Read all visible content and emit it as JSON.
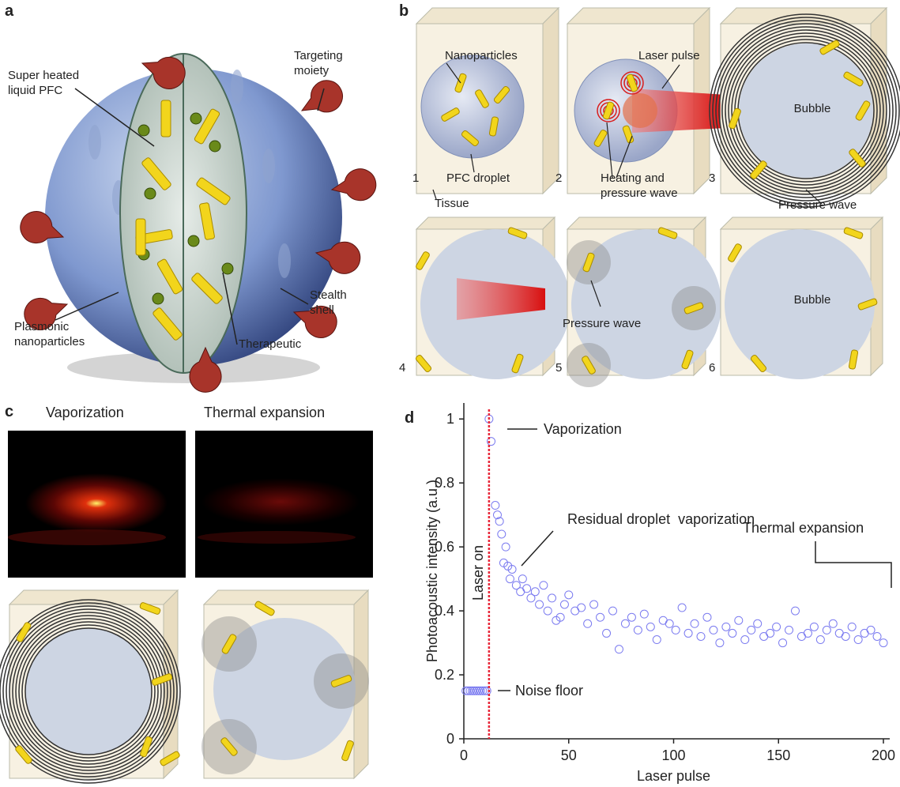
{
  "panels": {
    "a": {
      "letter": "a",
      "labels": {
        "pfc": [
          "Super heated",
          "liquid PFC"
        ],
        "targeting": [
          "Targeting",
          "moiety"
        ],
        "stealth": [
          "Stealth",
          "shell"
        ],
        "plasmonic": [
          "Plasmonic",
          "nanoparticles"
        ],
        "therapeutic": "Therapeutic"
      }
    },
    "b": {
      "letter": "b",
      "steps": [
        "1",
        "2",
        "3",
        "4",
        "5",
        "6"
      ],
      "labels": {
        "nanoparticles": "Nanoparticles",
        "droplet": "PFC droplet",
        "tissue": "Tissue",
        "laser": "Laser pulse",
        "heating": [
          "Heating and",
          "pressure wave"
        ],
        "bubble3": "Bubble",
        "pressure3": "Pressure wave",
        "pressure5": "Pressure wave",
        "bubble6": "Bubble"
      }
    },
    "c": {
      "letter": "c",
      "titles": [
        "Vaporization",
        "Thermal expansion"
      ]
    },
    "d": {
      "letter": "d"
    }
  },
  "chart_data": {
    "type": "scatter",
    "x_label": "Laser pulse",
    "y_label": "Photoacoustic intensity (a.u.)",
    "x": [
      1,
      2,
      3,
      4,
      5,
      6,
      7,
      8,
      9,
      10,
      11,
      12,
      13,
      15,
      16,
      17,
      18,
      19,
      20,
      21,
      22,
      23,
      25,
      27,
      28,
      30,
      32,
      34,
      36,
      38,
      40,
      42,
      44,
      46,
      48,
      50,
      53,
      56,
      59,
      62,
      65,
      68,
      71,
      74,
      77,
      80,
      83,
      86,
      89,
      92,
      95,
      98,
      101,
      104,
      107,
      110,
      113,
      116,
      119,
      122,
      125,
      128,
      131,
      134,
      137,
      140,
      143,
      146,
      149,
      152,
      155,
      158,
      161,
      164,
      167,
      170,
      173,
      176,
      179,
      182,
      185,
      188,
      191,
      194,
      197,
      200
    ],
    "values": [
      0.15,
      0.15,
      0.15,
      0.15,
      0.15,
      0.15,
      0.15,
      0.15,
      0.15,
      0.15,
      0.15,
      1.0,
      0.93,
      0.73,
      0.7,
      0.68,
      0.64,
      0.55,
      0.6,
      0.54,
      0.5,
      0.53,
      0.48,
      0.46,
      0.5,
      0.47,
      0.44,
      0.46,
      0.42,
      0.48,
      0.4,
      0.44,
      0.37,
      0.38,
      0.42,
      0.45,
      0.4,
      0.41,
      0.36,
      0.42,
      0.38,
      0.33,
      0.4,
      0.28,
      0.36,
      0.38,
      0.34,
      0.39,
      0.35,
      0.31,
      0.37,
      0.36,
      0.34,
      0.41,
      0.33,
      0.36,
      0.32,
      0.38,
      0.34,
      0.3,
      0.35,
      0.33,
      0.37,
      0.31,
      0.34,
      0.36,
      0.32,
      0.33,
      0.35,
      0.3,
      0.34,
      0.4,
      0.32,
      0.33,
      0.35,
      0.31,
      0.34,
      0.36,
      0.33,
      0.32,
      0.35,
      0.31,
      0.33,
      0.34,
      0.32,
      0.3
    ],
    "color": "#7b7bf0",
    "xlim": [
      0,
      200
    ],
    "ylim": [
      0,
      1.05
    ],
    "xticks": [
      0,
      50,
      100,
      150,
      200
    ],
    "yticks": [
      0,
      0.2,
      0.4,
      0.6,
      0.8,
      1
    ],
    "vline": {
      "x": 12,
      "label": "Laser on",
      "color": "#e8283a"
    },
    "annotations": [
      "Vaporization",
      "Residual droplet  vaporization",
      "Thermal expansion",
      "Noise floor"
    ]
  }
}
